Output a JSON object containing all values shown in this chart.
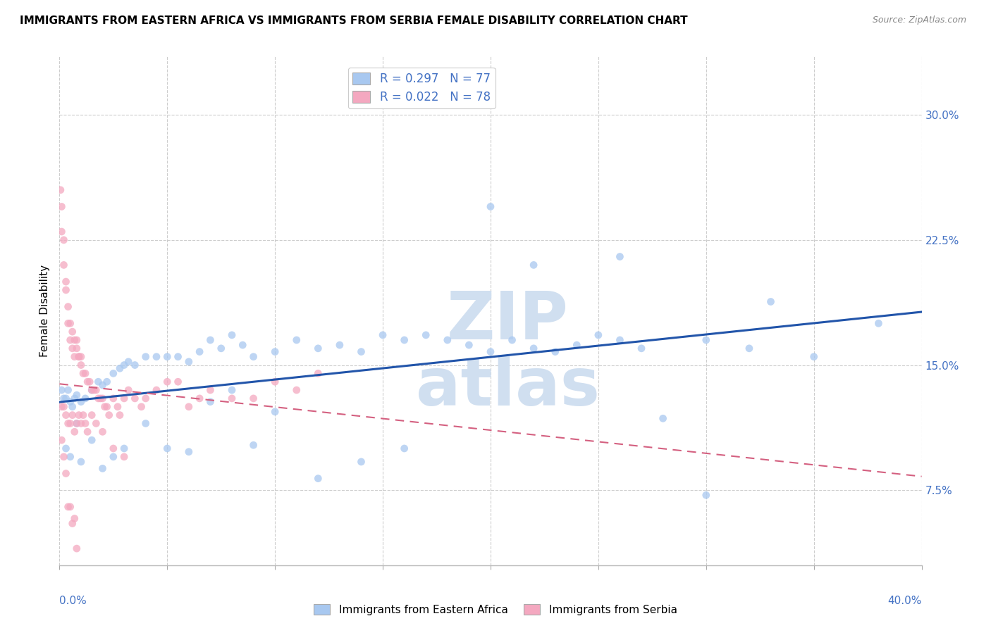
{
  "title": "IMMIGRANTS FROM EASTERN AFRICA VS IMMIGRANTS FROM SERBIA FEMALE DISABILITY CORRELATION CHART",
  "source": "Source: ZipAtlas.com",
  "ylabel": "Female Disability",
  "y_ticks": [
    0.075,
    0.15,
    0.225,
    0.3
  ],
  "y_tick_labels": [
    "7.5%",
    "15.0%",
    "22.5%",
    "30.0%"
  ],
  "xlim": [
    0.0,
    0.4
  ],
  "ylim": [
    0.03,
    0.335
  ],
  "series1_label": "Immigrants from Eastern Africa",
  "series1_color": "#a8c8f0",
  "series1_line_color": "#2255aa",
  "series1_R": "0.297",
  "series1_N": "77",
  "series2_label": "Immigrants from Serbia",
  "series2_color": "#f4a8c0",
  "series2_line_color": "#d46080",
  "series2_R": "0.022",
  "series2_N": "78",
  "legend_text_color": "#4472c4",
  "background_color": "#ffffff",
  "grid_color": "#c8c8c8",
  "watermark_color": "#d0dff0",
  "axis_label_color": "#4472c4",
  "title_fontsize": 11,
  "tick_fontsize": 11,
  "ylabel_fontsize": 11,
  "source_fontsize": 9,
  "legend_fontsize": 12,
  "scatter_size": 60,
  "scatter_alpha": 0.75,
  "series1_x": [
    0.001,
    0.002,
    0.003,
    0.004,
    0.005,
    0.006,
    0.007,
    0.008,
    0.01,
    0.012,
    0.015,
    0.018,
    0.02,
    0.022,
    0.025,
    0.028,
    0.03,
    0.032,
    0.035,
    0.04,
    0.045,
    0.05,
    0.055,
    0.06,
    0.065,
    0.07,
    0.075,
    0.08,
    0.085,
    0.09,
    0.1,
    0.11,
    0.12,
    0.13,
    0.14,
    0.15,
    0.16,
    0.17,
    0.18,
    0.19,
    0.2,
    0.21,
    0.22,
    0.23,
    0.24,
    0.25,
    0.26,
    0.27,
    0.28,
    0.3,
    0.32,
    0.35,
    0.38,
    0.003,
    0.005,
    0.008,
    0.01,
    0.015,
    0.02,
    0.025,
    0.03,
    0.04,
    0.05,
    0.06,
    0.07,
    0.08,
    0.09,
    0.1,
    0.12,
    0.14,
    0.16,
    0.2,
    0.22,
    0.26,
    0.3,
    0.33
  ],
  "series1_y": [
    0.135,
    0.13,
    0.13,
    0.135,
    0.128,
    0.125,
    0.13,
    0.132,
    0.128,
    0.13,
    0.135,
    0.14,
    0.138,
    0.14,
    0.145,
    0.148,
    0.15,
    0.152,
    0.15,
    0.155,
    0.155,
    0.155,
    0.155,
    0.152,
    0.158,
    0.165,
    0.16,
    0.168,
    0.162,
    0.155,
    0.158,
    0.165,
    0.16,
    0.162,
    0.158,
    0.168,
    0.165,
    0.168,
    0.165,
    0.162,
    0.158,
    0.165,
    0.16,
    0.158,
    0.162,
    0.168,
    0.165,
    0.16,
    0.118,
    0.165,
    0.16,
    0.155,
    0.175,
    0.1,
    0.095,
    0.115,
    0.092,
    0.105,
    0.088,
    0.095,
    0.1,
    0.115,
    0.1,
    0.098,
    0.128,
    0.135,
    0.102,
    0.122,
    0.082,
    0.092,
    0.1,
    0.245,
    0.21,
    0.215,
    0.072,
    0.188
  ],
  "series2_x": [
    0.0005,
    0.001,
    0.001,
    0.002,
    0.002,
    0.003,
    0.003,
    0.004,
    0.004,
    0.005,
    0.005,
    0.006,
    0.006,
    0.007,
    0.007,
    0.008,
    0.008,
    0.009,
    0.009,
    0.01,
    0.01,
    0.011,
    0.012,
    0.013,
    0.014,
    0.015,
    0.016,
    0.017,
    0.018,
    0.019,
    0.02,
    0.021,
    0.022,
    0.023,
    0.025,
    0.027,
    0.028,
    0.03,
    0.032,
    0.035,
    0.038,
    0.04,
    0.045,
    0.05,
    0.055,
    0.06,
    0.065,
    0.07,
    0.08,
    0.09,
    0.1,
    0.11,
    0.12,
    0.001,
    0.002,
    0.003,
    0.004,
    0.005,
    0.006,
    0.007,
    0.008,
    0.009,
    0.01,
    0.011,
    0.012,
    0.013,
    0.015,
    0.017,
    0.02,
    0.025,
    0.03,
    0.001,
    0.002,
    0.003,
    0.004,
    0.005,
    0.006,
    0.007,
    0.008
  ],
  "series2_y": [
    0.255,
    0.245,
    0.23,
    0.225,
    0.21,
    0.2,
    0.195,
    0.185,
    0.175,
    0.175,
    0.165,
    0.17,
    0.16,
    0.165,
    0.155,
    0.165,
    0.16,
    0.155,
    0.155,
    0.155,
    0.15,
    0.145,
    0.145,
    0.14,
    0.14,
    0.135,
    0.135,
    0.135,
    0.13,
    0.13,
    0.13,
    0.125,
    0.125,
    0.12,
    0.13,
    0.125,
    0.12,
    0.13,
    0.135,
    0.13,
    0.125,
    0.13,
    0.135,
    0.14,
    0.14,
    0.125,
    0.13,
    0.135,
    0.13,
    0.13,
    0.14,
    0.135,
    0.145,
    0.125,
    0.125,
    0.12,
    0.115,
    0.115,
    0.12,
    0.11,
    0.115,
    0.12,
    0.115,
    0.12,
    0.115,
    0.11,
    0.12,
    0.115,
    0.11,
    0.1,
    0.095,
    0.105,
    0.095,
    0.085,
    0.065,
    0.065,
    0.055,
    0.058,
    0.04
  ]
}
